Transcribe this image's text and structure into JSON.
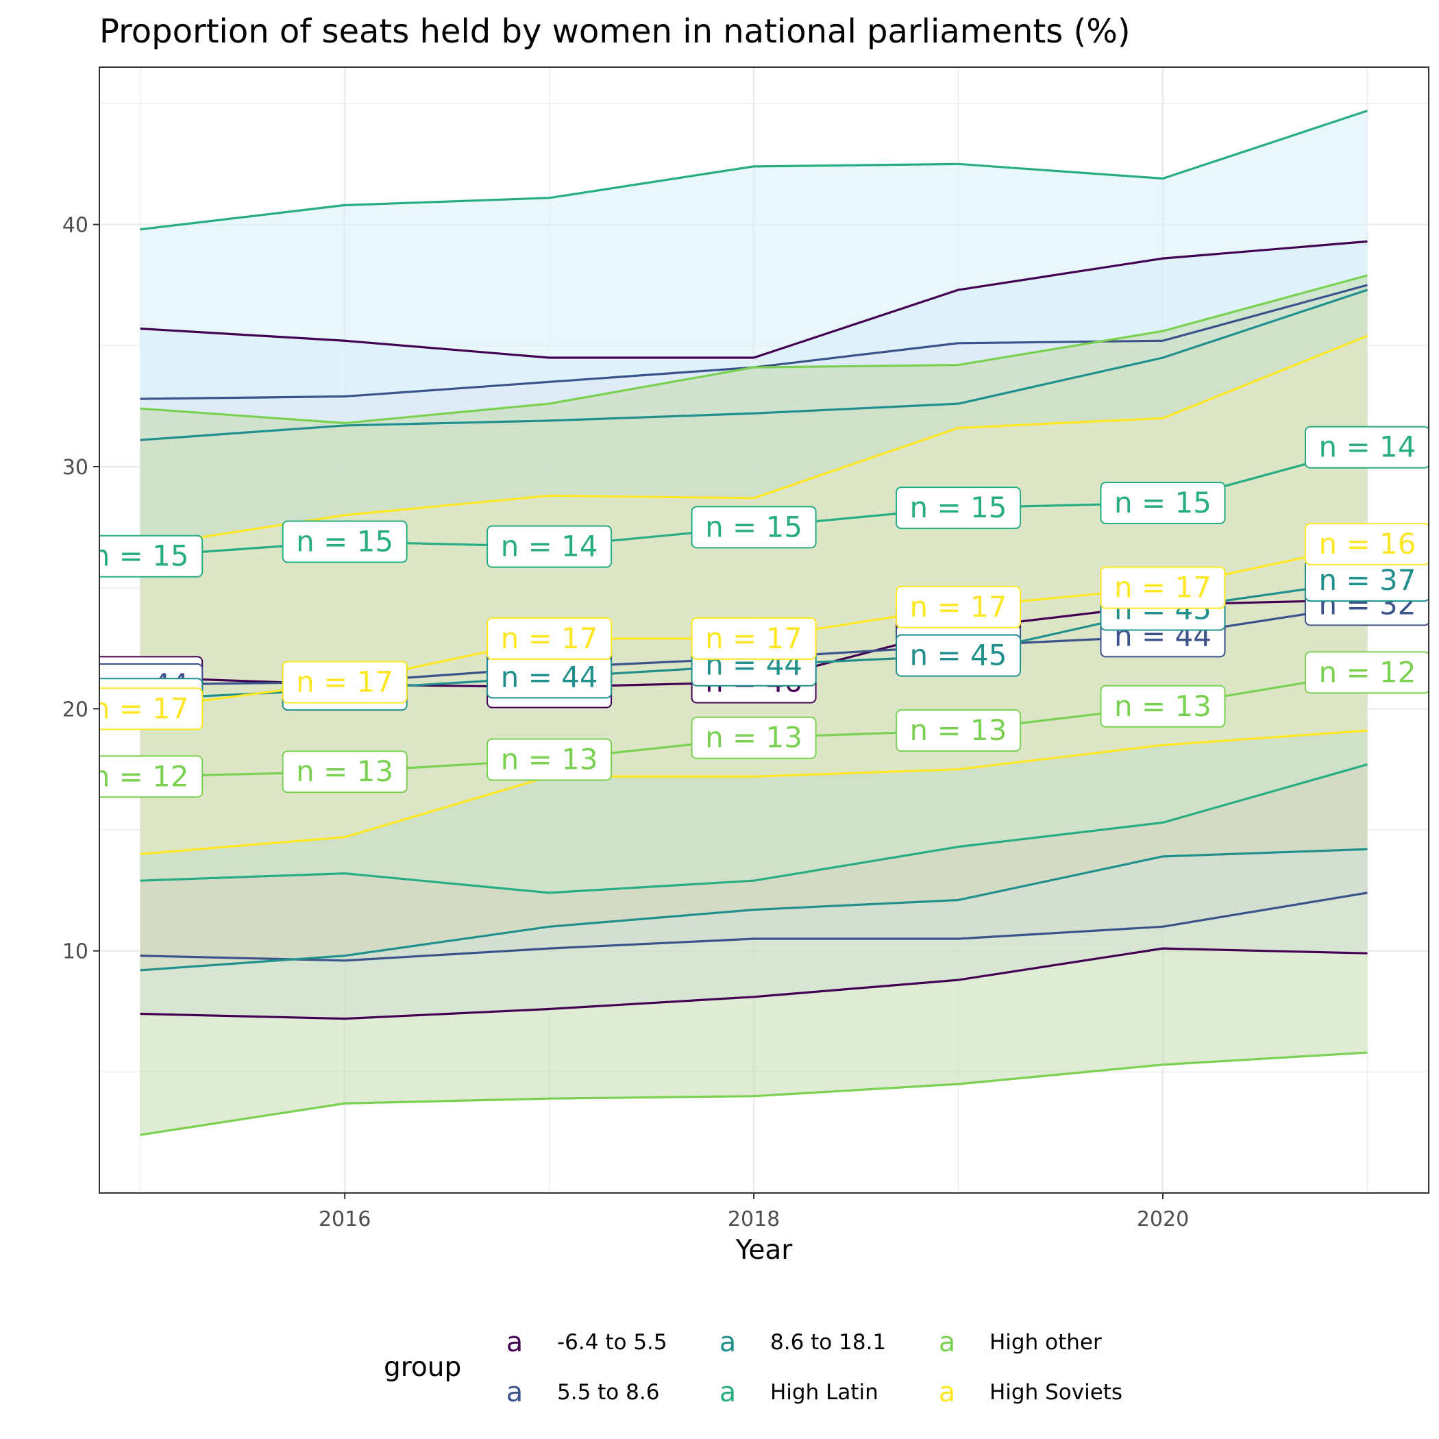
{
  "chart_data": {
    "type": "line",
    "title": "Proportion of seats held by women in national parliaments (%)",
    "xlabel": "Year",
    "ylabel": "",
    "xlim": [
      2014.8,
      2021.3
    ],
    "ylim": [
      0.0,
      46.5
    ],
    "x_ticks": [
      "2016",
      "2018",
      "2020"
    ],
    "y_ticks": [
      "10",
      "20",
      "30",
      "40"
    ],
    "grid": true,
    "legend": {
      "title": "group",
      "placement": "bottom",
      "key_glyph": "a",
      "entries": [
        "-6.4 to 5.5",
        "5.5 to 8.6",
        "8.6 to 18.1",
        "High Latin",
        "High other",
        "High Soviets"
      ]
    },
    "x": [
      2015,
      2016,
      2017,
      2018,
      2019,
      2020,
      2021
    ],
    "series": [
      {
        "name": "-6.4 to 5.5",
        "color": "#440154",
        "fill": "#E0E8FA",
        "lower": [
          7.4,
          7.2,
          7.6,
          8.1,
          8.8,
          10.1,
          9.9
        ],
        "mean": [
          21.3,
          21.0,
          20.9,
          21.1,
          23.3,
          24.3,
          24.5
        ],
        "upper": [
          35.7,
          35.2,
          34.5,
          34.5,
          37.3,
          38.6,
          39.3
        ],
        "labels": [
          "n = 44",
          "n = 44",
          "n = 45",
          "n = 46",
          "n = 46",
          "n = 45",
          "n = 32"
        ]
      },
      {
        "name": "5.5 to 8.6",
        "color": "#3B528B",
        "fill": "#E2D9EF",
        "lower": [
          9.8,
          9.6,
          10.1,
          10.5,
          10.5,
          11.0,
          12.4
        ],
        "mean": [
          21.0,
          21.1,
          21.7,
          22.1,
          22.6,
          23.0,
          24.3
        ],
        "upper": [
          32.8,
          32.9,
          33.5,
          34.1,
          35.1,
          35.2,
          37.5
        ],
        "labels": [
          "n = 44",
          "n = 44",
          "n = 44",
          "n = 44",
          "n = 44",
          "n = 44",
          "n = 32"
        ]
      },
      {
        "name": "8.6 to 18.1",
        "color": "#21908C",
        "fill": "#E6D2CC",
        "lower": [
          9.2,
          9.8,
          11.0,
          11.7,
          12.1,
          13.9,
          14.2
        ],
        "mean": [
          20.4,
          20.8,
          21.3,
          21.8,
          22.2,
          24.1,
          25.3
        ],
        "upper": [
          31.1,
          31.7,
          31.9,
          32.2,
          32.6,
          34.5,
          37.3
        ],
        "labels": [
          "n = 45",
          "n = 45",
          "n = 44",
          "n = 44",
          "n = 45",
          "n = 45",
          "n = 37"
        ]
      },
      {
        "name": "High Latin",
        "color": "#27AD81",
        "fill": "#D6F2F5",
        "lower": [
          12.9,
          13.2,
          12.4,
          12.9,
          14.3,
          15.3,
          17.7
        ],
        "mean": [
          26.3,
          26.9,
          26.7,
          27.5,
          28.3,
          28.5,
          30.8
        ],
        "upper": [
          39.8,
          40.8,
          41.1,
          42.4,
          42.5,
          41.9,
          44.7
        ],
        "labels": [
          "n = 15",
          "n = 15",
          "n = 14",
          "n = 15",
          "n = 15",
          "n = 15",
          "n = 14"
        ]
      },
      {
        "name": "High other",
        "color": "#7AD151",
        "fill": "#C4DCAE",
        "lower": [
          2.4,
          3.7,
          3.9,
          4.0,
          4.5,
          5.3,
          5.8
        ],
        "mean": [
          17.2,
          17.4,
          17.9,
          18.8,
          19.1,
          20.1,
          21.5
        ],
        "upper": [
          32.4,
          31.8,
          32.6,
          34.1,
          34.2,
          35.6,
          37.9
        ],
        "labels": [
          "n = 12",
          "n = 13",
          "n = 13",
          "n = 13",
          "n = 13",
          "n = 13",
          "n = 12"
        ]
      },
      {
        "name": "High Soviets",
        "color": "#FDE725",
        "fill": "#E5E9C2",
        "lower": [
          14.0,
          14.7,
          17.2,
          17.2,
          17.5,
          18.5,
          19.1
        ],
        "mean": [
          20.0,
          21.1,
          22.9,
          22.9,
          24.2,
          25.0,
          26.8
        ],
        "upper": [
          26.7,
          28.0,
          28.8,
          28.7,
          31.6,
          32.0,
          35.4
        ],
        "labels": [
          "n = 17",
          "n = 17",
          "n = 17",
          "n = 17",
          "n = 17",
          "n = 17",
          "n = 16"
        ]
      }
    ]
  }
}
